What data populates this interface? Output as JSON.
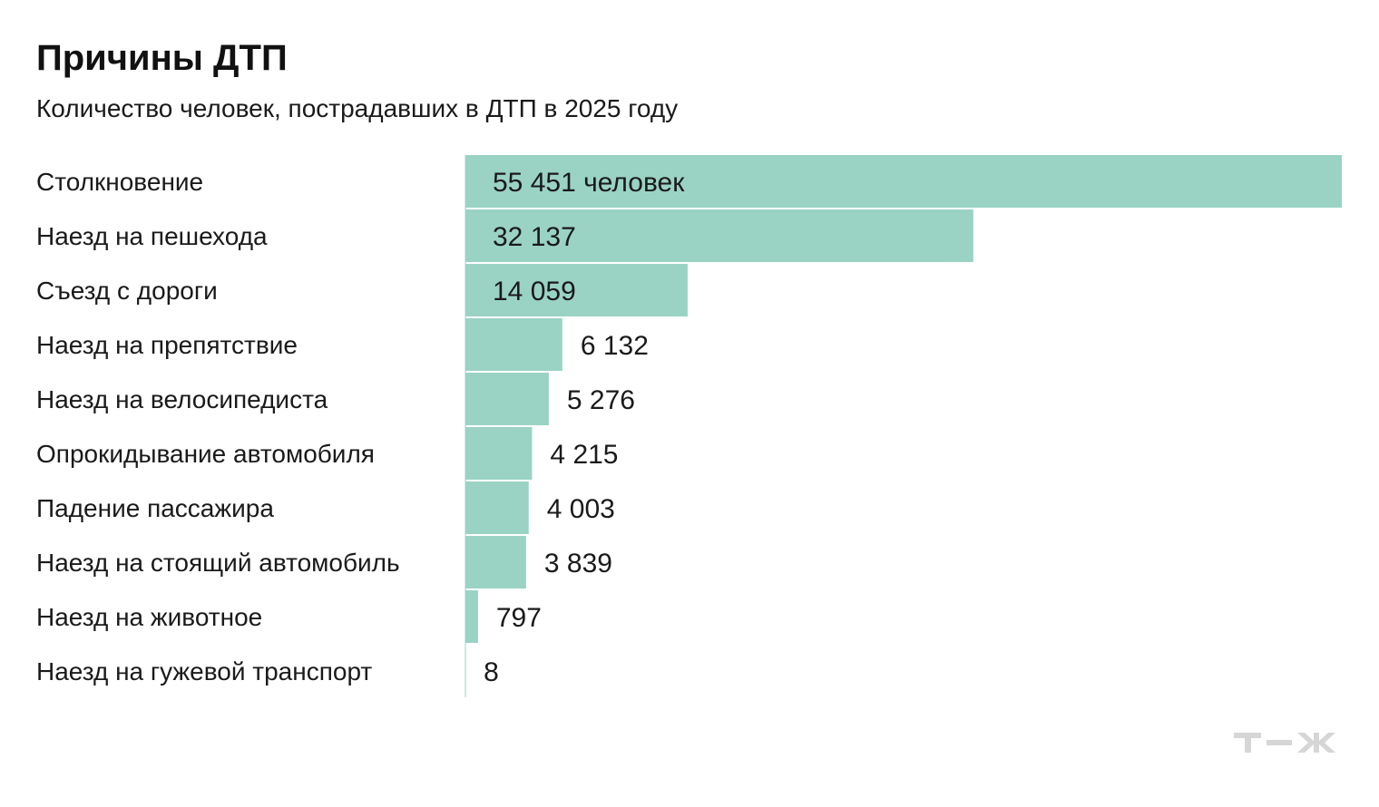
{
  "chart_data": {
    "type": "bar",
    "orientation": "horizontal",
    "title": "Причины ДТП",
    "subtitle": "Количество человек, пострадавших в ДТП в 2025 году",
    "categories": [
      "Столкновение",
      "Наезд на пешехода",
      "Съезд с дороги",
      "Наезд на препятствие",
      "Наезд на велосипедиста",
      "Опрокидывание автомобиля",
      "Падение пассажира",
      "Наезд на стоящий автомобиль",
      "Наезд на животное",
      "Наезд на гужевой транспорт"
    ],
    "values": [
      55451,
      32137,
      14059,
      6132,
      5276,
      4215,
      4003,
      3839,
      797,
      8
    ],
    "value_labels": [
      "55 451 человек",
      "32 137",
      "14 059",
      "6 132",
      "5 276",
      "4 215",
      "4 003",
      "3 839",
      "797",
      "8"
    ],
    "bar_color": "#9ad3c4",
    "xlim": [
      0,
      55451
    ],
    "grid": false,
    "legend": "none"
  },
  "logo_text": "Т—Ж",
  "logo_color": "#d6d6d6"
}
